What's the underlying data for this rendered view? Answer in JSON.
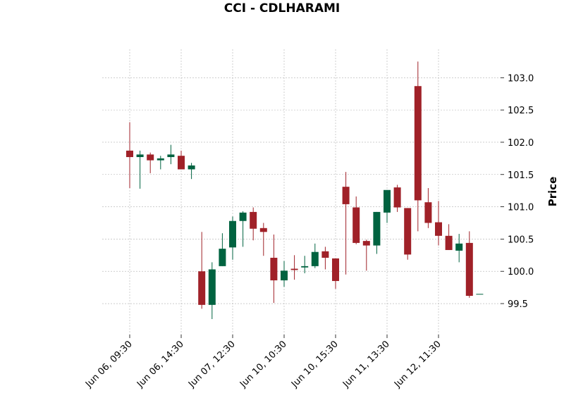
{
  "chart_data": {
    "type": "candlestick",
    "title": "CCI - CDLHARAMI",
    "y_label": "Price",
    "categories": [
      "Jun 06, 09:30",
      null,
      null,
      null,
      null,
      "Jun 06, 14:30",
      null,
      null,
      null,
      null,
      "Jun 07, 12:30",
      null,
      null,
      null,
      null,
      "Jun 10, 10:30",
      null,
      null,
      null,
      null,
      "Jun 10, 15:30",
      null,
      null,
      null,
      null,
      "Jun 11, 13:30",
      null,
      null,
      null,
      null,
      "Jun 12, 11:30",
      null,
      null,
      null,
      null
    ],
    "open": [
      101.87,
      101.77,
      101.81,
      101.72,
      101.77,
      101.79,
      101.58,
      100.0,
      99.48,
      100.08,
      100.37,
      100.78,
      100.92,
      100.67,
      100.21,
      99.86,
      100.04,
      100.06,
      100.08,
      100.31,
      100.2,
      101.31,
      100.99,
      100.47,
      100.4,
      100.91,
      101.3,
      100.98,
      102.87,
      101.07,
      100.76,
      100.55,
      100.32,
      100.44,
      99.65
    ],
    "high": [
      102.31,
      101.87,
      101.84,
      101.79,
      101.96,
      101.87,
      101.68,
      100.61,
      100.14,
      100.59,
      100.85,
      100.93,
      100.99,
      100.75,
      100.57,
      100.16,
      100.25,
      100.24,
      100.43,
      100.38,
      100.2,
      101.54,
      101.16,
      100.49,
      100.92,
      101.26,
      101.34,
      100.98,
      103.25,
      101.29,
      101.09,
      100.73,
      100.58,
      100.62,
      99.65
    ],
    "low": [
      101.29,
      101.28,
      101.52,
      101.58,
      101.66,
      101.58,
      101.43,
      99.42,
      99.26,
      100.08,
      100.18,
      100.38,
      100.48,
      100.24,
      99.51,
      99.76,
      99.87,
      99.97,
      100.05,
      100.03,
      99.73,
      99.95,
      100.42,
      100.01,
      100.27,
      100.75,
      100.92,
      100.18,
      100.62,
      100.67,
      100.4,
      100.33,
      100.14,
      99.59,
      99.65
    ],
    "close": [
      101.77,
      101.81,
      101.72,
      101.75,
      101.81,
      101.58,
      101.64,
      99.48,
      100.03,
      100.35,
      100.78,
      100.91,
      100.66,
      100.61,
      99.86,
      100.01,
      100.02,
      100.08,
      100.3,
      100.21,
      99.85,
      101.04,
      100.44,
      100.4,
      100.92,
      101.26,
      100.99,
      100.26,
      101.1,
      100.75,
      100.55,
      100.33,
      100.43,
      99.62,
      99.65
    ],
    "up_color": "#006340",
    "down_color": "#a02128",
    "ylim": [
      99.02,
      103.44
    ],
    "yticks": [
      {
        "value": 99.5,
        "label": "99.5"
      },
      {
        "value": 100,
        "label": "100.0"
      },
      {
        "value": 100.5,
        "label": "100.5"
      },
      {
        "value": 101,
        "label": "101.0"
      },
      {
        "value": 101.5,
        "label": "101.5"
      },
      {
        "value": 102,
        "label": "102.0"
      },
      {
        "value": 102.5,
        "label": "102.5"
      },
      {
        "value": 103,
        "label": "103.0"
      }
    ],
    "grid": true
  }
}
